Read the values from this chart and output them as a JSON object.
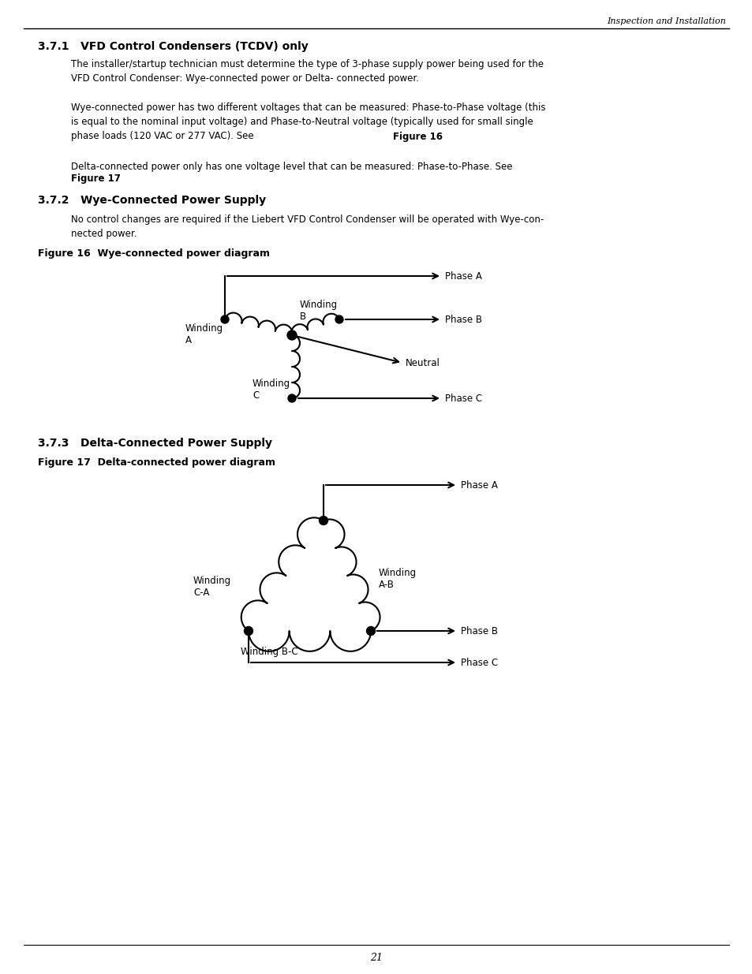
{
  "page_width": 9.54,
  "page_height": 12.35,
  "bg_color": "#ffffff",
  "header_text": "Inspection and Installation",
  "footer_text": "21",
  "section_371_title": "3.7.1   VFD Control Condensers (TCDV) only",
  "section_372_title": "3.7.2   Wye-Connected Power Supply",
  "section_373_title": "3.7.3   Delta-Connected Power Supply",
  "fig16_caption": "Figure 16  Wye-connected power diagram",
  "fig17_caption": "Figure 17  Delta-connected power diagram"
}
